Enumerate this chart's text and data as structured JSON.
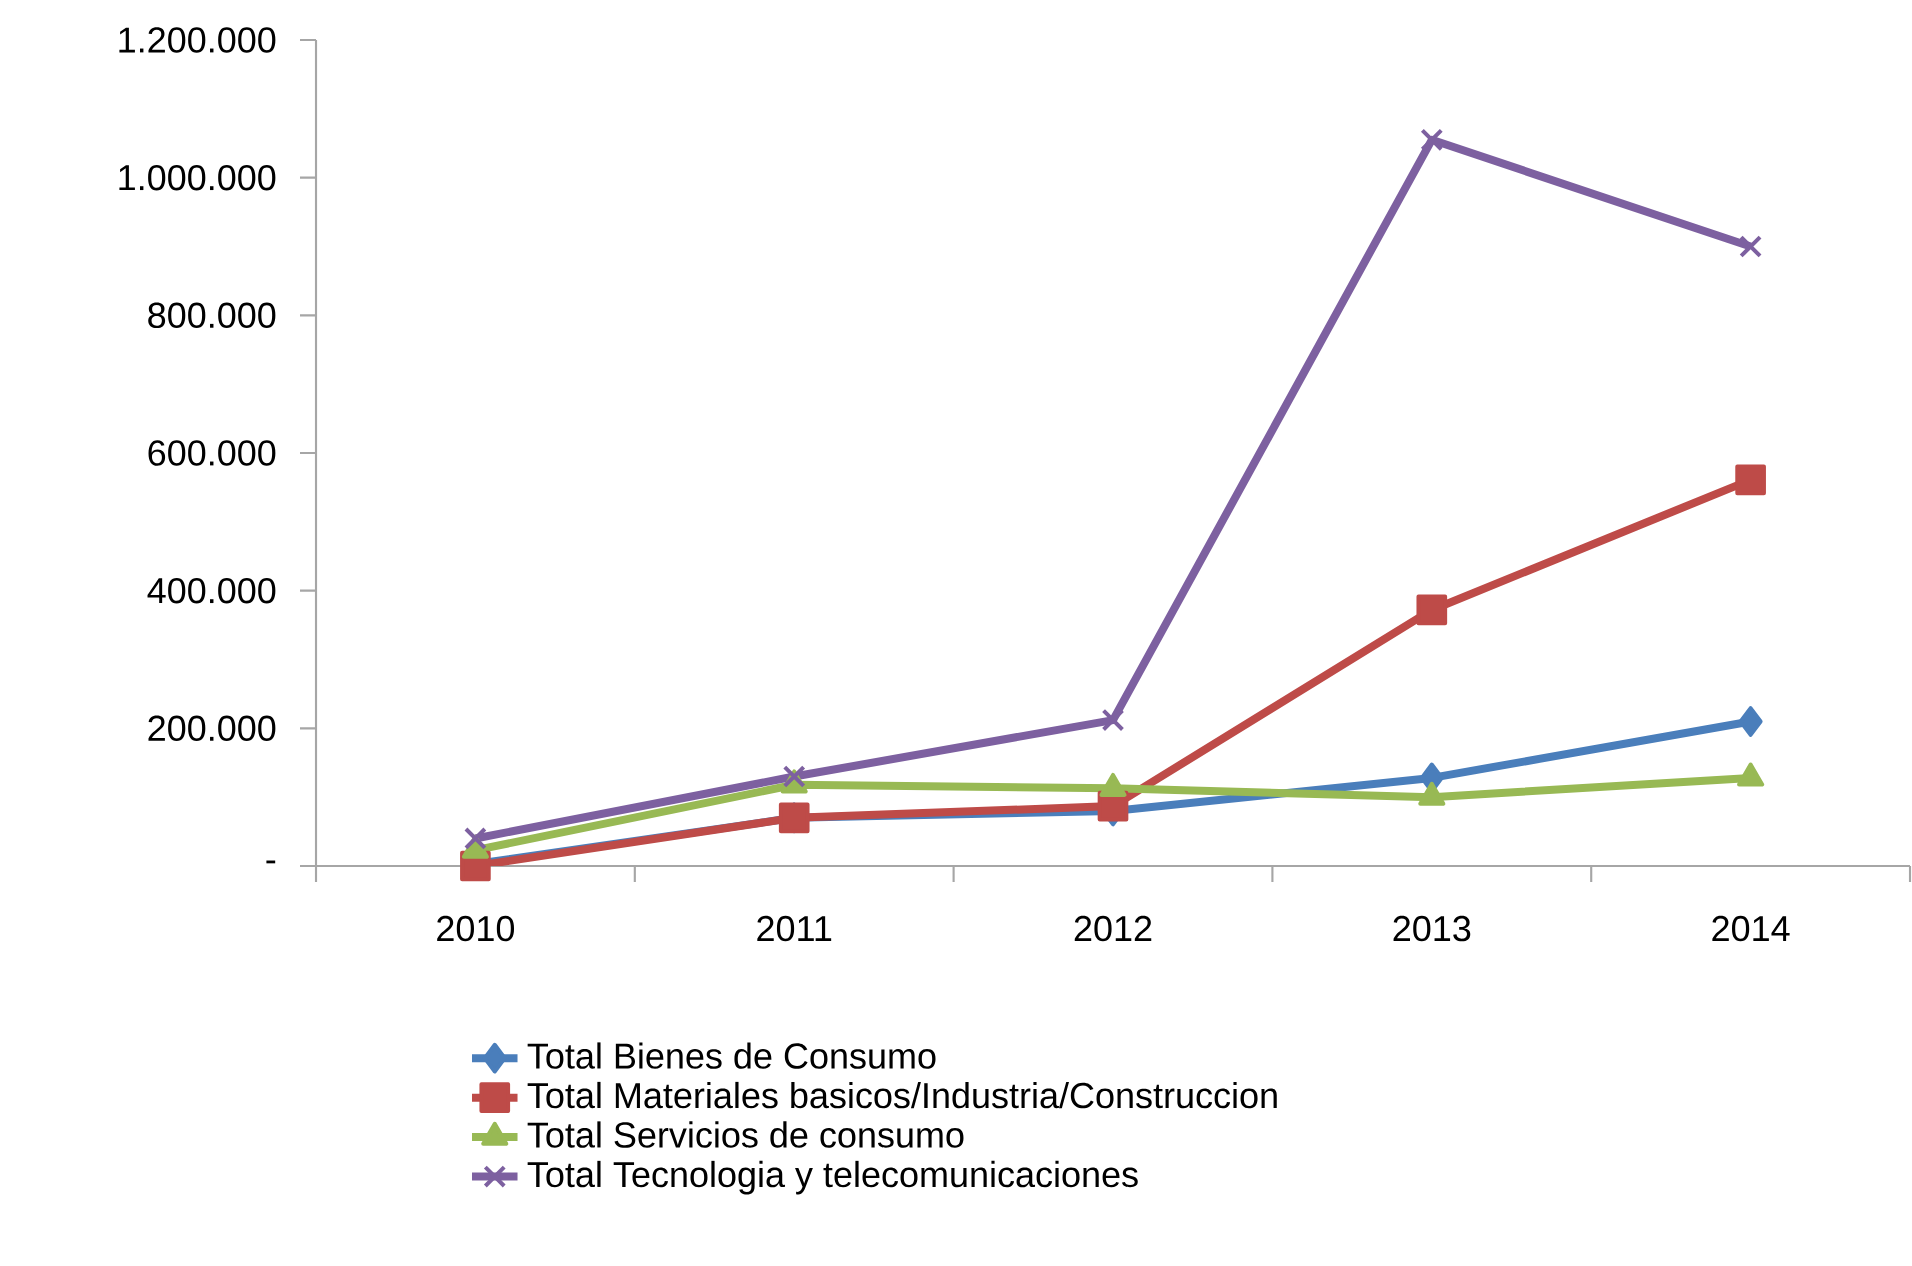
{
  "chart_data": {
    "type": "line",
    "categories": [
      "2010",
      "2011",
      "2012",
      "2013",
      "2014"
    ],
    "series": [
      {
        "name": "Total Bienes de Consumo",
        "color": "#4a7ebb",
        "marker": "diamond",
        "values": [
          3000,
          70000,
          80000,
          128000,
          210000
        ]
      },
      {
        "name": "Total Materiales basicos/Industria/Construccion",
        "color": "#be4b48",
        "marker": "square",
        "values": [
          0,
          70000,
          87000,
          372000,
          561000
        ]
      },
      {
        "name": "Total Servicios de consumo",
        "color": "#98b954",
        "marker": "triangle",
        "values": [
          23000,
          118000,
          113000,
          100000,
          128000
        ]
      },
      {
        "name": "Total Tecnologia y telecomunicaciones",
        "color": "#7d60a0",
        "marker": "cross",
        "values": [
          40000,
          130000,
          212000,
          1055000,
          900000
        ]
      }
    ],
    "ylim": [
      0,
      1200000
    ],
    "yticks": [
      {
        "value": 0,
        "label": "-"
      },
      {
        "value": 200000,
        "label": "200.000"
      },
      {
        "value": 400000,
        "label": "400.000"
      },
      {
        "value": 600000,
        "label": "600.000"
      },
      {
        "value": 800000,
        "label": "800.000"
      },
      {
        "value": 1000000,
        "label": "1.000.000"
      },
      {
        "value": 1200000,
        "label": "1.200.000"
      }
    ],
    "legend": "bottom",
    "grid": false,
    "line_style": "solid"
  }
}
